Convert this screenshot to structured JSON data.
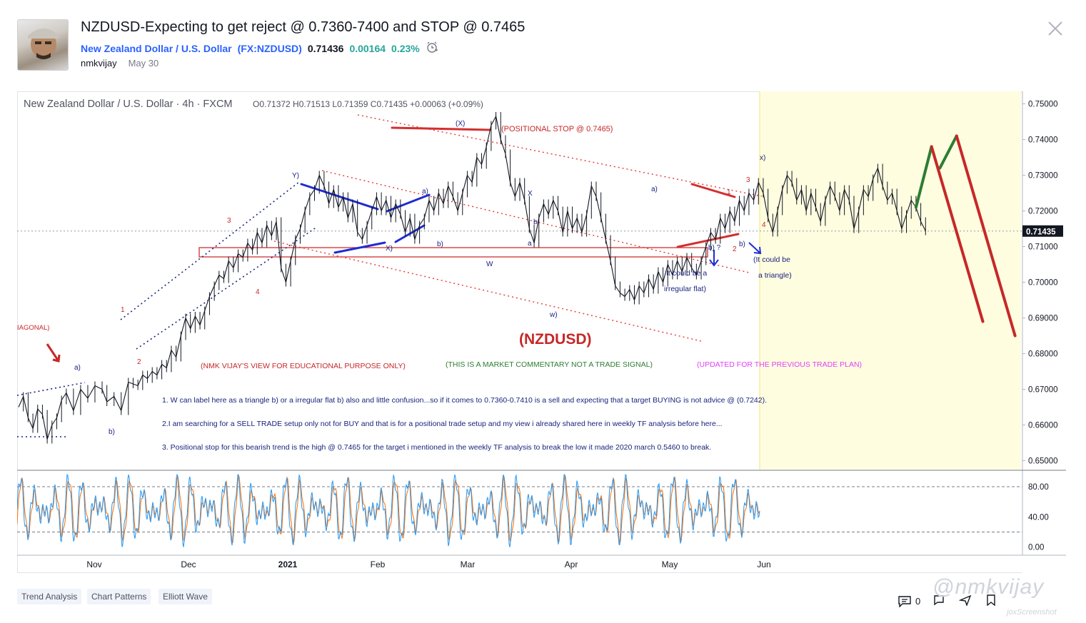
{
  "idea": {
    "title": "NZDUSD-Expecting to get reject @ 0.7360-7400 and STOP @ 0.7465",
    "symbol_name": "New Zealand Dollar / U.S. Dollar",
    "symbol_ticker": "(FX:NZDUSD)",
    "price": "0.71436",
    "change": "0.00164",
    "change_pct": "0.23%",
    "author": "nmkvijay",
    "date": "May 30"
  },
  "chart_data": {
    "type": "line",
    "header": {
      "instrument": "New Zealand Dollar / U.S. Dollar · 4h · FXCM",
      "ohlc": "O0.71372  H0.71513  L0.71359  C0.71435  +0.00063 (+0.09%)"
    },
    "price_axis": {
      "ticks": [
        "0.75000",
        "0.74000",
        "0.73000",
        "0.72000",
        "0.71000",
        "0.70000",
        "0.69000",
        "0.68000",
        "0.67000",
        "0.66000",
        "0.65000"
      ],
      "values": [
        0.75,
        0.74,
        0.73,
        0.72,
        0.71,
        0.7,
        0.69,
        0.68,
        0.67,
        0.66,
        0.65
      ],
      "ylim": [
        0.6475,
        0.7535
      ],
      "current_price_label": "0.71435",
      "current_price": 0.71435
    },
    "time_axis": {
      "labels": [
        "Nov",
        "Dec",
        "2021",
        "Feb",
        "Mar",
        "Apr",
        "May",
        "Jun"
      ]
    },
    "oscillator_axis": {
      "ticks": [
        "80.00",
        "40.00",
        "0.00"
      ],
      "values": [
        80,
        40,
        0
      ],
      "ylim": [
        -6,
        98
      ],
      "levels": [
        80,
        20
      ]
    },
    "price_series": [
      [
        0,
        0.665
      ],
      [
        4,
        0.668
      ],
      [
        8,
        0.662
      ],
      [
        12,
        0.659
      ],
      [
        16,
        0.6645
      ],
      [
        20,
        0.663
      ],
      [
        24,
        0.656
      ],
      [
        28,
        0.66
      ],
      [
        32,
        0.662
      ],
      [
        36,
        0.667
      ],
      [
        40,
        0.669
      ],
      [
        46,
        0.664
      ],
      [
        52,
        0.67
      ],
      [
        58,
        0.6675
      ],
      [
        64,
        0.671
      ],
      [
        70,
        0.67
      ],
      [
        74,
        0.6665
      ],
      [
        80,
        0.668
      ],
      [
        86,
        0.664
      ],
      [
        92,
        0.672
      ],
      [
        96,
        0.6715
      ],
      [
        100,
        0.671
      ],
      [
        104,
        0.674
      ],
      [
        108,
        0.673
      ],
      [
        112,
        0.675
      ],
      [
        116,
        0.674
      ],
      [
        120,
        0.677
      ],
      [
        124,
        0.676
      ],
      [
        128,
        0.681
      ],
      [
        132,
        0.679
      ],
      [
        136,
        0.685
      ],
      [
        140,
        0.69
      ],
      [
        144,
        0.687
      ],
      [
        148,
        0.6905
      ],
      [
        152,
        0.688
      ],
      [
        156,
        0.692
      ],
      [
        160,
        0.696
      ],
      [
        164,
        0.699
      ],
      [
        168,
        0.702
      ],
      [
        172,
        0.701
      ],
      [
        176,
        0.706
      ],
      [
        180,
        0.704
      ],
      [
        184,
        0.708
      ],
      [
        188,
        0.707
      ],
      [
        192,
        0.711
      ],
      [
        196,
        0.709
      ],
      [
        200,
        0.714
      ],
      [
        204,
        0.711
      ],
      [
        208,
        0.716
      ],
      [
        212,
        0.713
      ],
      [
        216,
        0.717
      ],
      [
        220,
        0.704
      ],
      [
        224,
        0.7
      ],
      [
        228,
        0.706
      ],
      [
        232,
        0.712
      ],
      [
        236,
        0.715
      ],
      [
        240,
        0.72
      ],
      [
        244,
        0.724
      ],
      [
        248,
        0.726
      ],
      [
        252,
        0.73
      ],
      [
        256,
        0.727
      ],
      [
        260,
        0.722
      ],
      [
        264,
        0.726
      ],
      [
        268,
        0.721
      ],
      [
        272,
        0.724
      ],
      [
        276,
        0.718
      ],
      [
        280,
        0.722
      ],
      [
        284,
        0.714
      ],
      [
        288,
        0.712
      ],
      [
        292,
        0.716
      ],
      [
        296,
        0.72
      ],
      [
        300,
        0.724
      ],
      [
        304,
        0.72
      ],
      [
        308,
        0.723
      ],
      [
        312,
        0.718
      ],
      [
        316,
        0.722
      ],
      [
        320,
        0.719
      ],
      [
        324,
        0.714
      ],
      [
        328,
        0.718
      ],
      [
        332,
        0.712
      ],
      [
        336,
        0.716
      ],
      [
        340,
        0.718
      ],
      [
        344,
        0.723
      ],
      [
        348,
        0.72
      ],
      [
        352,
        0.725
      ],
      [
        356,
        0.722
      ],
      [
        360,
        0.727
      ],
      [
        364,
        0.724
      ],
      [
        368,
        0.72
      ],
      [
        372,
        0.725
      ],
      [
        376,
        0.73
      ],
      [
        380,
        0.728
      ],
      [
        384,
        0.735
      ],
      [
        388,
        0.733
      ],
      [
        392,
        0.738
      ],
      [
        396,
        0.744
      ],
      [
        400,
        0.7465
      ],
      [
        404,
        0.74
      ],
      [
        408,
        0.736
      ],
      [
        412,
        0.728
      ],
      [
        416,
        0.724
      ],
      [
        420,
        0.728
      ],
      [
        424,
        0.723
      ],
      [
        428,
        0.715
      ],
      [
        432,
        0.711
      ],
      [
        436,
        0.718
      ],
      [
        440,
        0.722
      ],
      [
        444,
        0.719
      ],
      [
        448,
        0.723
      ],
      [
        452,
        0.72
      ],
      [
        456,
        0.714
      ],
      [
        460,
        0.72
      ],
      [
        464,
        0.715
      ],
      [
        468,
        0.718
      ],
      [
        472,
        0.714
      ],
      [
        476,
        0.719
      ],
      [
        480,
        0.727
      ],
      [
        484,
        0.724
      ],
      [
        488,
        0.718
      ],
      [
        492,
        0.712
      ],
      [
        496,
        0.706
      ],
      [
        500,
        0.699
      ],
      [
        504,
        0.697
      ],
      [
        508,
        0.696
      ],
      [
        512,
        0.698
      ],
      [
        516,
        0.695
      ],
      [
        520,
        0.699
      ],
      [
        524,
        0.697
      ],
      [
        528,
        0.701
      ],
      [
        532,
        0.698
      ],
      [
        536,
        0.703
      ],
      [
        540,
        0.7
      ],
      [
        544,
        0.705
      ],
      [
        548,
        0.702
      ],
      [
        552,
        0.706
      ],
      [
        556,
        0.703
      ],
      [
        560,
        0.707
      ],
      [
        564,
        0.704
      ],
      [
        568,
        0.702
      ],
      [
        572,
        0.706
      ],
      [
        576,
        0.71
      ],
      [
        580,
        0.714
      ],
      [
        584,
        0.712
      ],
      [
        588,
        0.718
      ],
      [
        592,
        0.715
      ],
      [
        596,
        0.72
      ],
      [
        600,
        0.717
      ],
      [
        604,
        0.723
      ],
      [
        608,
        0.72
      ],
      [
        612,
        0.725
      ],
      [
        616,
        0.723
      ],
      [
        620,
        0.728
      ],
      [
        624,
        0.725
      ],
      [
        628,
        0.718
      ],
      [
        632,
        0.714
      ],
      [
        636,
        0.72
      ],
      [
        640,
        0.726
      ],
      [
        644,
        0.73
      ],
      [
        648,
        0.728
      ],
      [
        652,
        0.723
      ],
      [
        656,
        0.726
      ],
      [
        660,
        0.72
      ],
      [
        664,
        0.725
      ],
      [
        668,
        0.721
      ],
      [
        672,
        0.717
      ],
      [
        676,
        0.723
      ],
      [
        680,
        0.727
      ],
      [
        684,
        0.724
      ],
      [
        688,
        0.72
      ],
      [
        692,
        0.726
      ],
      [
        696,
        0.723
      ],
      [
        700,
        0.715
      ],
      [
        704,
        0.72
      ],
      [
        708,
        0.726
      ],
      [
        712,
        0.724
      ],
      [
        716,
        0.729
      ],
      [
        720,
        0.732
      ],
      [
        724,
        0.727
      ],
      [
        728,
        0.723
      ],
      [
        732,
        0.725
      ],
      [
        736,
        0.72
      ],
      [
        740,
        0.715
      ],
      [
        744,
        0.719
      ],
      [
        748,
        0.723
      ],
      [
        752,
        0.721
      ],
      [
        756,
        0.717
      ],
      [
        760,
        0.7144
      ]
    ],
    "projection_series": [
      {
        "name": "",
        "color": "#2e7d32",
        "points": [
          [
            752,
            0.721
          ],
          [
            765,
            0.738
          ]
        ]
      },
      {
        "name": "",
        "color": "#2e7d32",
        "points": [
          [
            772,
            0.732
          ],
          [
            786,
            0.741
          ]
        ]
      },
      {
        "name": "",
        "color": "#c62828",
        "points": [
          [
            765,
            0.738
          ],
          [
            808,
            0.689
          ]
        ]
      },
      {
        "name": "",
        "color": "#c62828",
        "points": [
          [
            786,
            0.741
          ],
          [
            835,
            0.685
          ]
        ]
      }
    ],
    "annotations": [
      {
        "id": "header-positional-stop",
        "text": "(POSITIONAL STOP @ 0.7465)",
        "color": "#c62828"
      },
      {
        "id": "main-symbol",
        "text": "(NZDUSD)",
        "color": "#c62828"
      },
      {
        "id": "educational",
        "text": "(NMK VIJAY'S VIEW FOR EDUCATIONAL PURPOSE ONLY)",
        "color": "#c62828"
      },
      {
        "id": "commentary",
        "text": "(THIS IS A MARKET COMMENTARY NOT A TRADE SIGNAL)",
        "color": "#2e7d32"
      },
      {
        "id": "updated",
        "text": "(UPDATED FOR THE PREVIOUS TRADE PLAN)",
        "color": "#e040fb"
      },
      {
        "id": "irregular-flat",
        "text": "It could be a irregular flat)",
        "color": "#1a237e"
      },
      {
        "id": "triangle",
        "text": "(It could be a triangle)",
        "color": "#1a237e"
      },
      {
        "id": "diagonal",
        "text": "IAGONAL)",
        "color": "#c62828"
      },
      {
        "id": "note1",
        "text": "1. W can label here as a triangle b) or a irregular flat b) also and little confusion...so if it comes to 0.7360-0.7410 is a sell and expecting that a target BUYING is not advice @ (0.7242).",
        "color": "#1a237e"
      },
      {
        "id": "note2",
        "text": "2.I am searching for a SELL TRADE setup only not for BUY and that is for a positional trade setup and my view i already shared here in weekly TF analysis before here...",
        "color": "#1a237e"
      },
      {
        "id": "note3",
        "text": "3. Positional stop for this bearish trend is the high @ 0.7465 for the target i mentioned in the weekly TF analysis to break the low  it made 2020 march 0.5460 to break.",
        "color": "#1a237e"
      }
    ],
    "wave_labels": [
      {
        "text": "(X)",
        "color": "#1a237e"
      },
      {
        "text": "Y)",
        "color": "#1a237e"
      },
      {
        "text": "X)",
        "color": "#1a237e"
      },
      {
        "text": "a)",
        "color": "#1a237e"
      },
      {
        "text": "b)",
        "color": "#1a237e"
      },
      {
        "text": "W",
        "color": "#1a237e"
      },
      {
        "text": "X",
        "color": "#1a237e"
      },
      {
        "text": "a",
        "color": "#1a237e"
      },
      {
        "text": "b",
        "color": "#1a237e"
      },
      {
        "text": "w)",
        "color": "#1a237e"
      },
      {
        "text": "b) ?",
        "color": "#1a237e"
      },
      {
        "text": "x)",
        "color": "#1a237e"
      },
      {
        "text": "a)",
        "color": "#1a237e"
      },
      {
        "text": "b)",
        "color": "#1a237e"
      },
      {
        "text": "a)",
        "color": "#1a237e"
      },
      {
        "text": "b)",
        "color": "#1a237e"
      },
      {
        "text": "1",
        "color": "#c62828"
      },
      {
        "text": "2",
        "color": "#c62828"
      },
      {
        "text": "3",
        "color": "#c62828"
      },
      {
        "text": "4",
        "color": "#c62828"
      },
      {
        "text": "1",
        "color": "#c62828"
      },
      {
        "text": "2",
        "color": "#c62828"
      },
      {
        "text": "3",
        "color": "#c62828"
      },
      {
        "text": "4",
        "color": "#c62828"
      }
    ],
    "colors": {
      "candles": "#131722",
      "channel_red": "#e53935",
      "channel_blue": "#1a237e",
      "trend_blue": "#1e2bd4",
      "highlight_zone": "#fffde0",
      "stoch_k": "#2196f3",
      "stoch_d": "#ff6d00",
      "price_tag_bg": "#131722"
    },
    "grid": false
  },
  "tags": [
    "Trend Analysis",
    "Chart Patterns",
    "Elliott Wave"
  ],
  "footer": {
    "comments": "0",
    "watermark": "@nmkvijay",
    "watermark_small": "joxScreenshot"
  }
}
